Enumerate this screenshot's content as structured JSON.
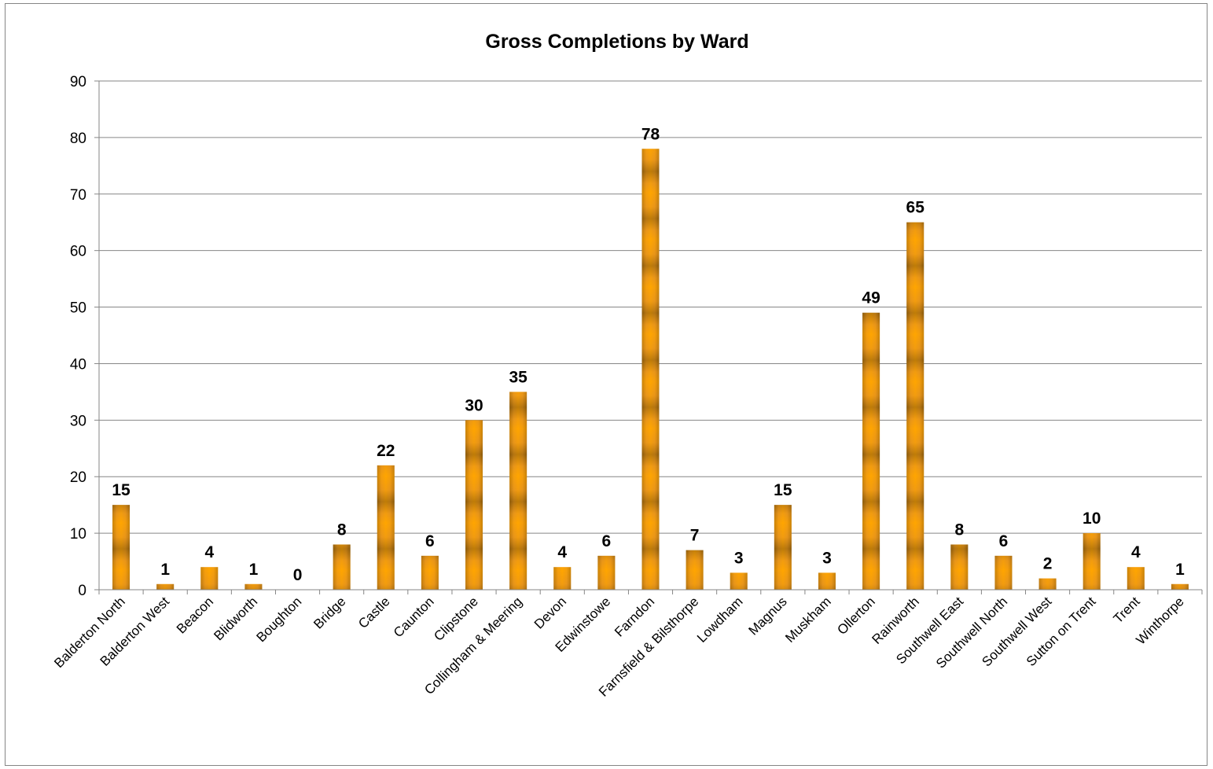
{
  "chart_data": {
    "type": "bar",
    "title": "Gross Completions by Ward",
    "xlabel": "",
    "ylabel": "",
    "ylim": [
      0,
      90
    ],
    "yticks": [
      0,
      10,
      20,
      30,
      40,
      50,
      60,
      70,
      80,
      90
    ],
    "grid": true,
    "legend": "none",
    "categories": [
      "Balderton North",
      "Balderton West",
      "Beacon",
      "Blidworth",
      "Boughton",
      "Bridge",
      "Castle",
      "Caunton",
      "Clipstone",
      "Collingham & Meering",
      "Devon",
      "Edwinstowe",
      "Farndon",
      "Farnsfield & Bilsthorpe",
      "Lowdham",
      "Magnus",
      "Muskham",
      "Ollerton",
      "Rainworth",
      "Southwell East",
      "Southwell North",
      "Southwell West",
      "Sutton on Trent",
      "Trent",
      "Winthorpe"
    ],
    "values": [
      15,
      1,
      4,
      1,
      0,
      8,
      22,
      6,
      30,
      35,
      4,
      6,
      78,
      7,
      3,
      15,
      3,
      49,
      65,
      8,
      6,
      2,
      10,
      4,
      1
    ],
    "colors": {
      "bar_light": "#FFA500",
      "bar_mid": "#E8951A",
      "bar_dark": "#8A5A0C",
      "grid": "#868686"
    }
  }
}
